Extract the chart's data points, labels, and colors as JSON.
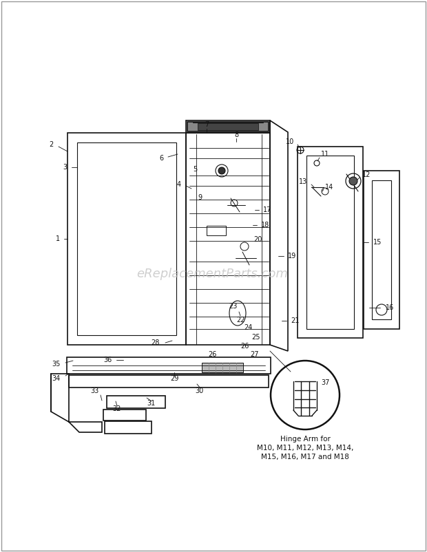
{
  "bg_color": "#ffffff",
  "line_color": "#111111",
  "watermark_text": "eReplacementParts.com",
  "watermark_color": "#c0c0c0",
  "hinge_label": "Hinge Arm for\nM10, M11, M12, M13, M14,\nM15, M16, M17 and M18",
  "figsize": [
    6.2,
    8.02
  ],
  "dpi": 100,
  "border_color": "#999999",
  "part_label_fontsize": 7,
  "watermark_fontsize": 13
}
